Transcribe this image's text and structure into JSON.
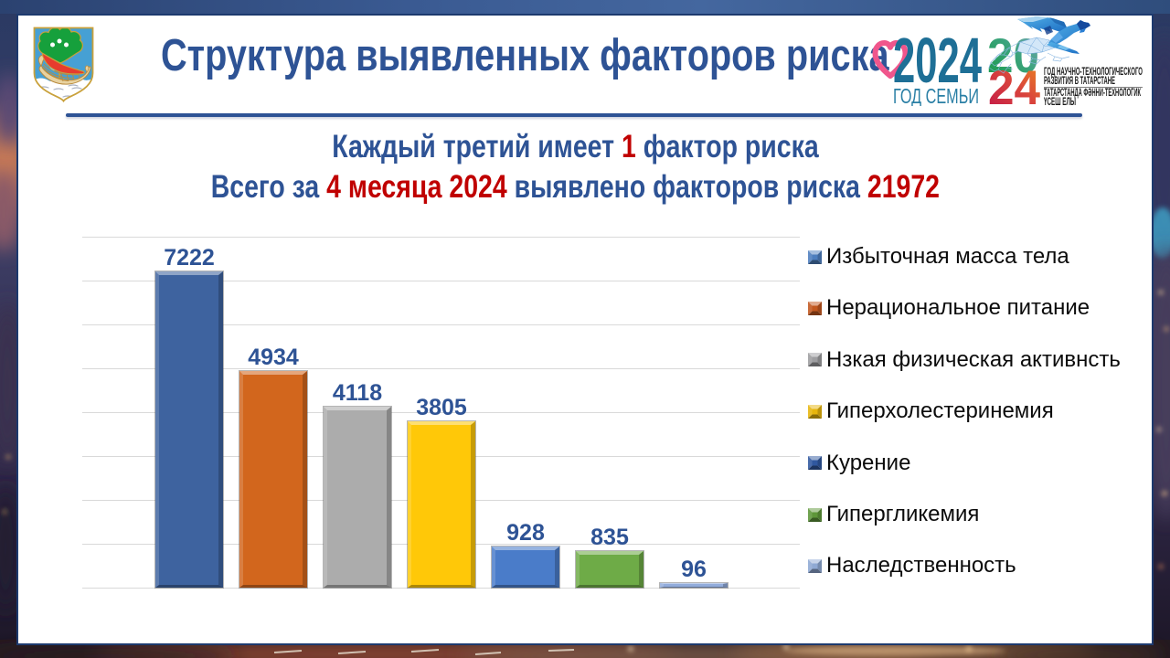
{
  "header": {
    "title": "Структура выявленных факторов риска",
    "emblem_name": "naberezhnye-chelny-coat-of-arms",
    "logo_family": {
      "year": "2024",
      "caption": "ГОД СЕМЬИ"
    },
    "logo_science_year": {
      "digits_top": "20",
      "digits_bottom": "24",
      "line1": "ГОД НАУЧНО-ТЕХНОЛОГИЧЕСКОГО",
      "line2": "РАЗВИТИЯ В ТАТАРСТАНЕ",
      "line3": "ТАТАРСТАНДА ФӘННИ-ТЕХНОЛОГИК",
      "line4": "ҮСЕШ ЕЛЫ"
    }
  },
  "subtitles": {
    "line1": [
      {
        "text": "Каждый третий имеет ",
        "color": "#2e5395"
      },
      {
        "text": "1",
        "color": "#c00000"
      },
      {
        "text": " фактор риска",
        "color": "#2e5395"
      }
    ],
    "line2": [
      {
        "text": "Всего за ",
        "color": "#2e5395"
      },
      {
        "text": "4 месяца 2024",
        "color": "#c00000"
      },
      {
        "text": " выявлено факторов риска ",
        "color": "#2e5395"
      },
      {
        "text": "21972",
        "color": "#c00000"
      }
    ]
  },
  "chart_data": {
    "type": "bar",
    "title": "",
    "xlabel": "",
    "ylabel": "",
    "categories": [
      "Избыточная масса тела",
      "Нерациональное питание",
      "Нзкая физическая активнсть",
      "Гиперхолестеринемия",
      "Курение",
      "Гипергликемия",
      "Наследственность"
    ],
    "values": [
      7222,
      4934,
      4118,
      3805,
      928,
      835,
      96
    ],
    "data_labels": true,
    "ylim": [
      0,
      8000
    ],
    "grid_step": 1000,
    "grid": true,
    "legend_position": "right",
    "bar_colors": [
      "#3e639f",
      "#d2661d",
      "#acacac",
      "#ffc808",
      "#4a7cc9",
      "#6eab47",
      "#92acdb"
    ],
    "legend_colors": [
      "#4d7ebe",
      "#c2571e",
      "#9d9da0",
      "#e7b50c",
      "#30589f",
      "#5e9639",
      "#8fa9d4"
    ],
    "gridline_color": "#d9d9d9",
    "label_color": "#2e5395"
  },
  "colors": {
    "panel_border": "#1d3a6e",
    "top_band": "#35568a",
    "title_blue": "#2e5395",
    "accent_red": "#c00000"
  }
}
